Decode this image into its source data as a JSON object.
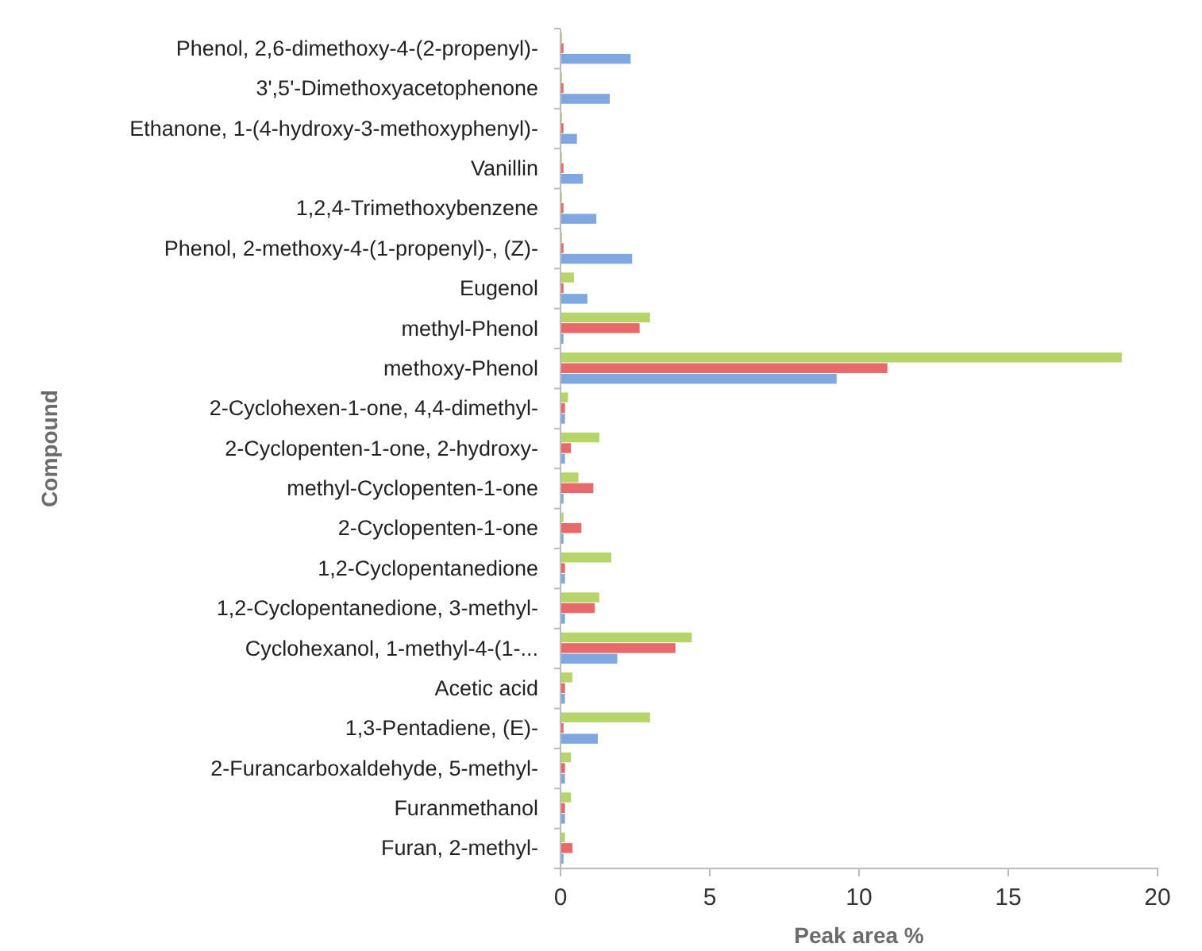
{
  "chart_data": {
    "type": "bar",
    "orientation": "horizontal",
    "xlabel": "Peak area %",
    "ylabel": "Compound",
    "categories": [
      "Phenol, 2,6-dimethoxy-4-(2-propenyl)-",
      "3',5'-Dimethoxyacetophenone",
      "Ethanone, 1-(4-hydroxy-3-methoxyphenyl)-",
      "Vanillin",
      "1,2,4-Trimethoxybenzene",
      "Phenol, 2-methoxy-4-(1-propenyl)-, (Z)-",
      "Eugenol",
      "methyl-Phenol",
      "methoxy-Phenol",
      "2-Cyclohexen-1-one, 4,4-dimethyl-",
      "2-Cyclopenten-1-one, 2-hydroxy-",
      "methyl-Cyclopenten-1-one",
      "2-Cyclopenten-1-one",
      "1,2-Cyclopentanedione",
      "1,2-Cyclopentanedione, 3-methyl-",
      "Cyclohexanol, 1-methyl-4-(1-...",
      "Acetic acid",
      "1,3-Pentadiene, (E)-",
      "2-Furancarboxaldehyde, 5-methyl-",
      "Furanmethanol",
      "Furan, 2-methyl-"
    ],
    "series": [
      {
        "color": "#7fa7e0",
        "values": [
          2.35,
          1.65,
          0.55,
          0.75,
          1.2,
          2.4,
          0.9,
          0.1,
          9.25,
          0.15,
          0.15,
          0.1,
          0.1,
          0.15,
          0.15,
          1.9,
          0.15,
          1.25,
          0.15,
          0.15,
          0.1
        ]
      },
      {
        "color": "#e8696a",
        "values": [
          0.1,
          0.1,
          0.1,
          0.1,
          0.1,
          0.1,
          0.1,
          2.65,
          10.95,
          0.15,
          0.35,
          1.1,
          0.7,
          0.15,
          1.15,
          3.85,
          0.15,
          0.1,
          0.15,
          0.15,
          0.4
        ]
      },
      {
        "color": "#b5d56a",
        "values": [
          0.05,
          0.05,
          0.05,
          0.05,
          0.05,
          0.05,
          0.45,
          3.0,
          18.8,
          0.25,
          1.3,
          0.6,
          0.1,
          1.7,
          1.3,
          4.4,
          0.4,
          3.0,
          0.35,
          0.35,
          0.15
        ]
      }
    ],
    "xlim": [
      0,
      20
    ],
    "xticks": [
      0,
      5,
      10,
      15,
      20
    ],
    "grid": false
  }
}
